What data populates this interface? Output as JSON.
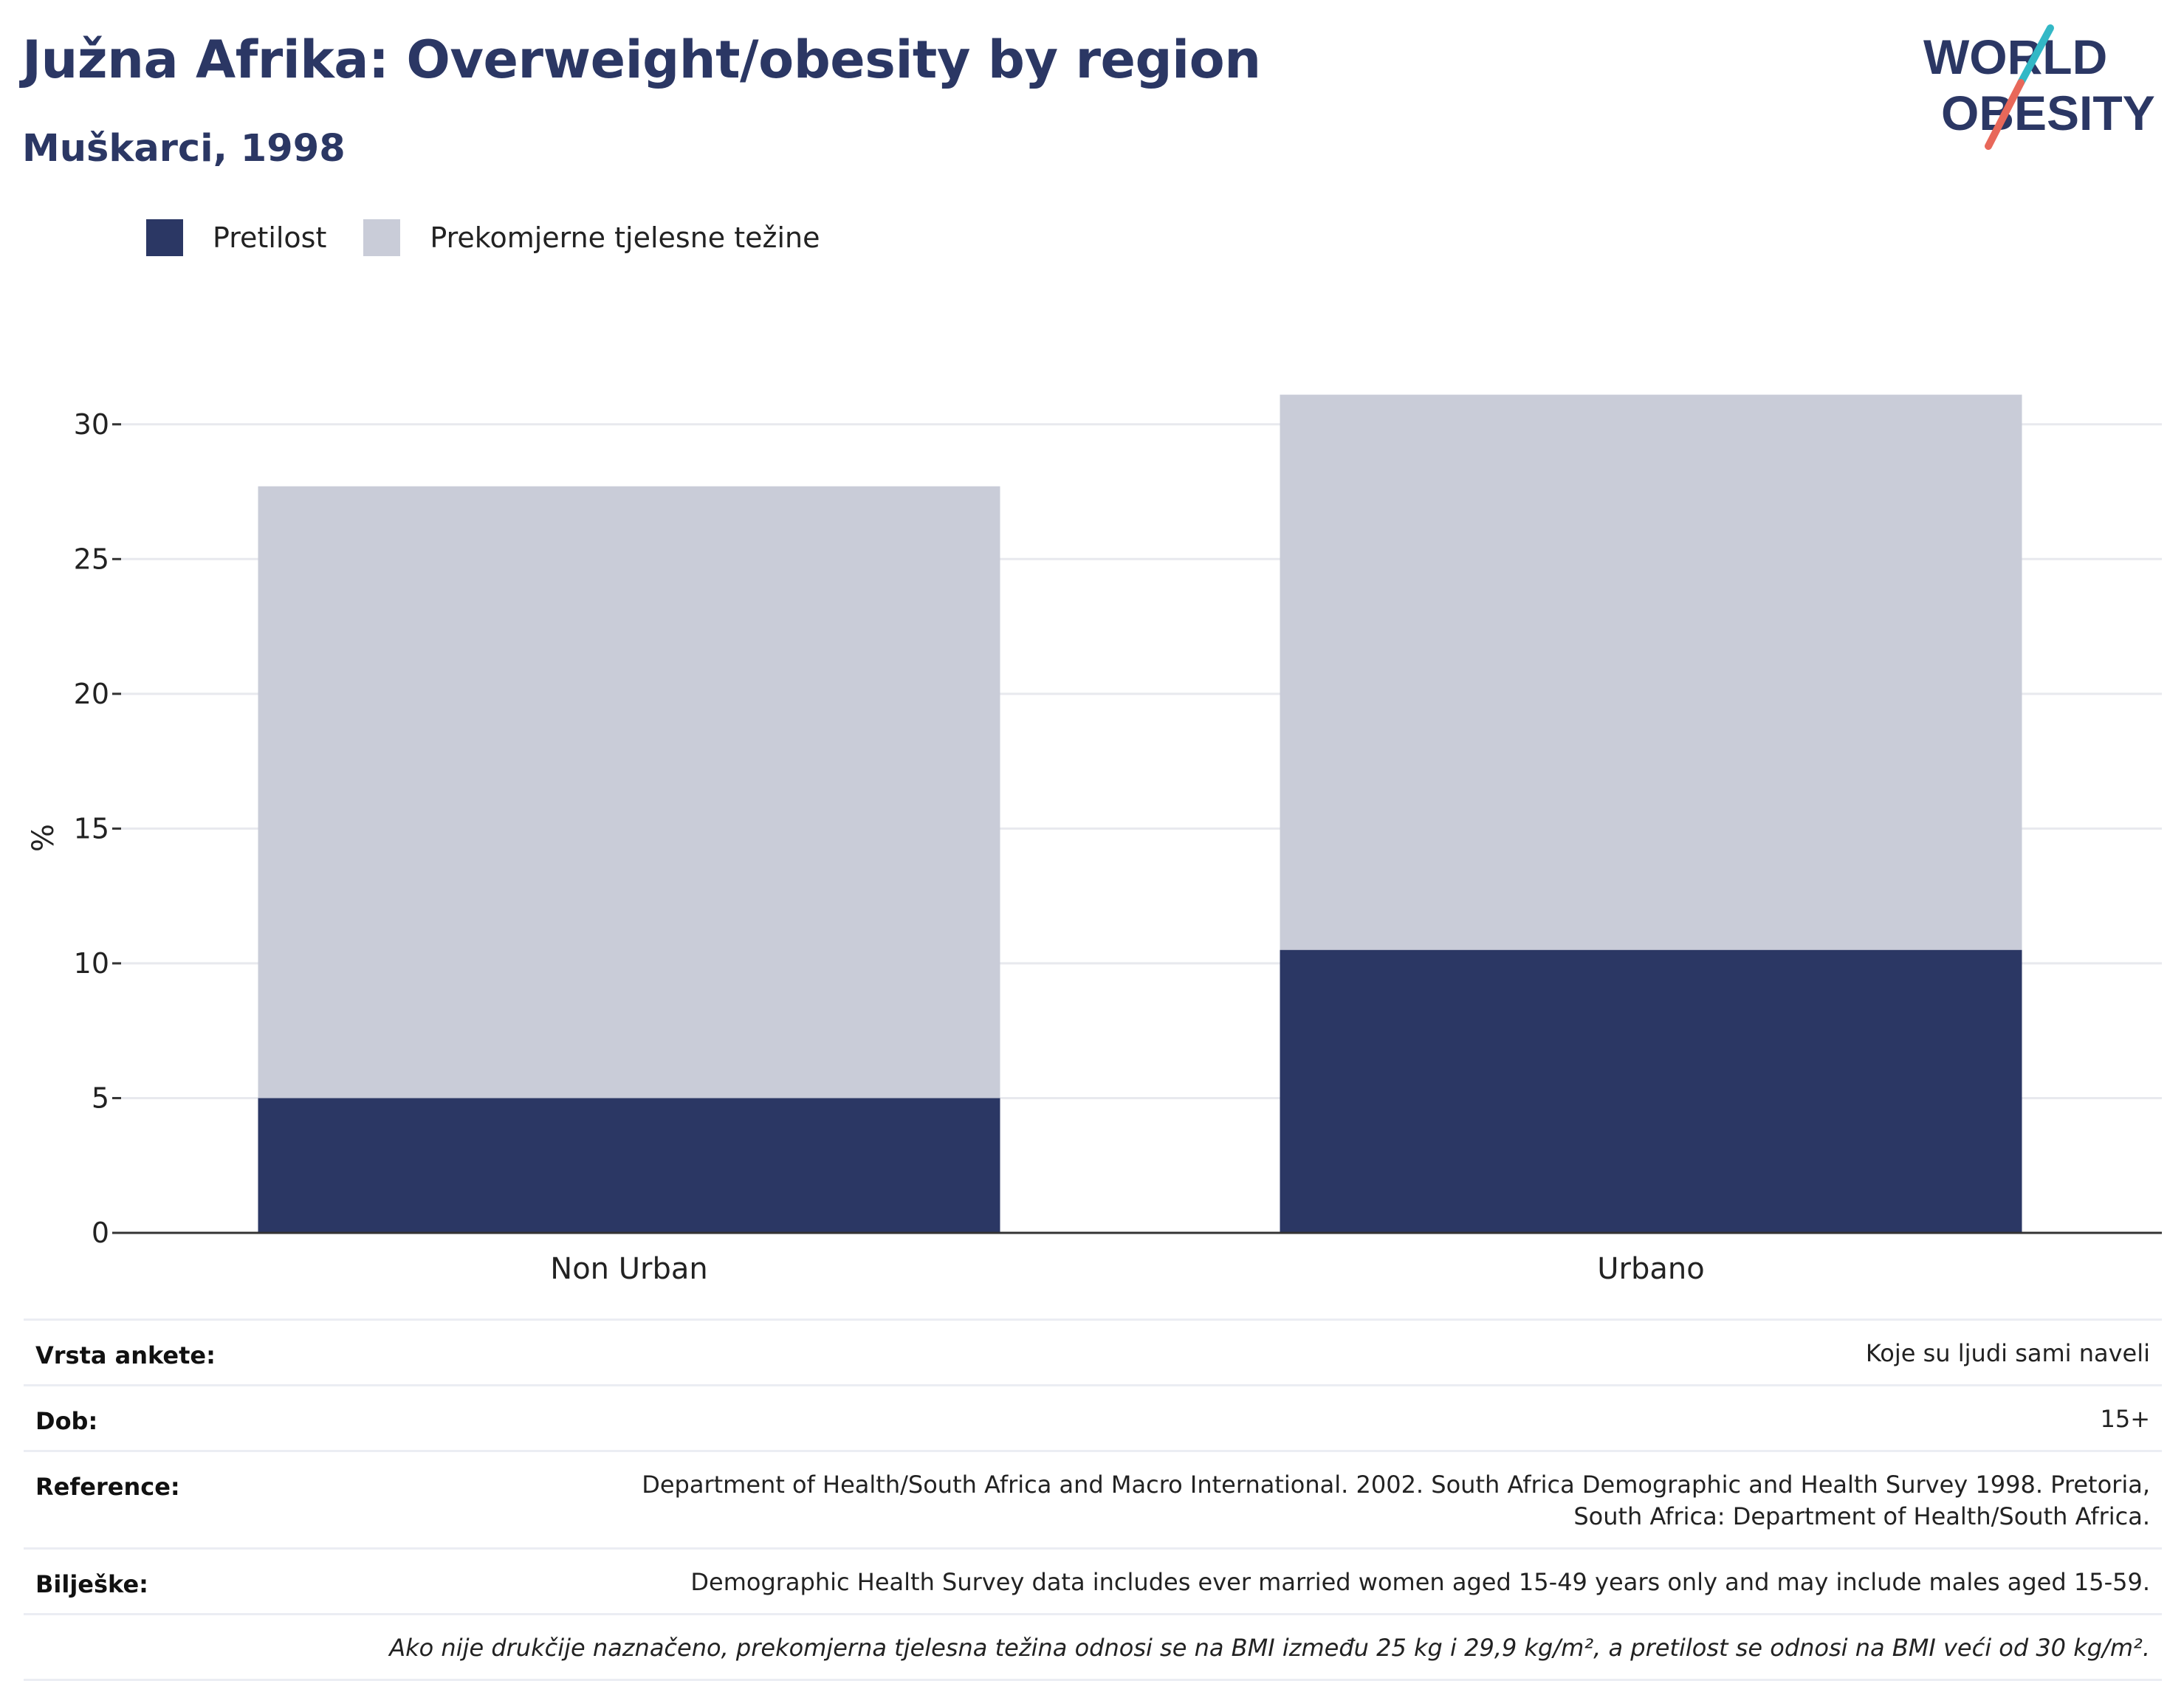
{
  "header": {
    "title": "Južna Afrika: Overweight/obesity by region",
    "subtitle": "Muškarci, 1998"
  },
  "logo": {
    "line1": "WORLD",
    "line2": "OBESITY",
    "text_color": "#2b3764",
    "slash_colors": [
      "#33b8c6",
      "#e8685a"
    ]
  },
  "legend": [
    {
      "label": "Pretilost",
      "color": "#2b3764"
    },
    {
      "label": "Prekomjerne tjelesne težine",
      "color": "#c9ccd8"
    }
  ],
  "chart_data": {
    "type": "bar",
    "stacked": true,
    "categories": [
      "Non Urban",
      "Urbano"
    ],
    "series": [
      {
        "name": "Pretilost",
        "values": [
          5.0,
          10.5
        ],
        "color": "#2b3764"
      },
      {
        "name": "Prekomjerne tjelesne težine",
        "values": [
          22.7,
          20.6
        ],
        "color": "#c9ccd8"
      }
    ],
    "ylabel": "%",
    "ylim": [
      0,
      31.5
    ],
    "yticks": [
      0,
      5,
      10,
      15,
      20,
      25,
      30
    ],
    "grid": true,
    "legend_position": "top-left"
  },
  "info": {
    "survey_label": "Vrsta ankete:",
    "survey_value": "Koje su ljudi sami naveli",
    "age_label": "Dob:",
    "age_value": "15+",
    "reference_label": "Reference:",
    "reference_value": "Department of Health/South Africa and Macro International. 2002. South Africa Demographic and Health Survey 1998. Pretoria, South Africa: Department of Health/South Africa.",
    "notes_label": "Bilješke:",
    "notes_value": "Demographic Health Survey data includes ever married women aged 15-49 years only and may include males aged 15-59.",
    "definition": "Ako nije drukčije naznačeno, prekomjerna tjelesna težina odnosi se na BMI između 25 kg i 29,9 kg/m², a pretilost se odnosi na BMI veći od 30 kg/m²."
  }
}
